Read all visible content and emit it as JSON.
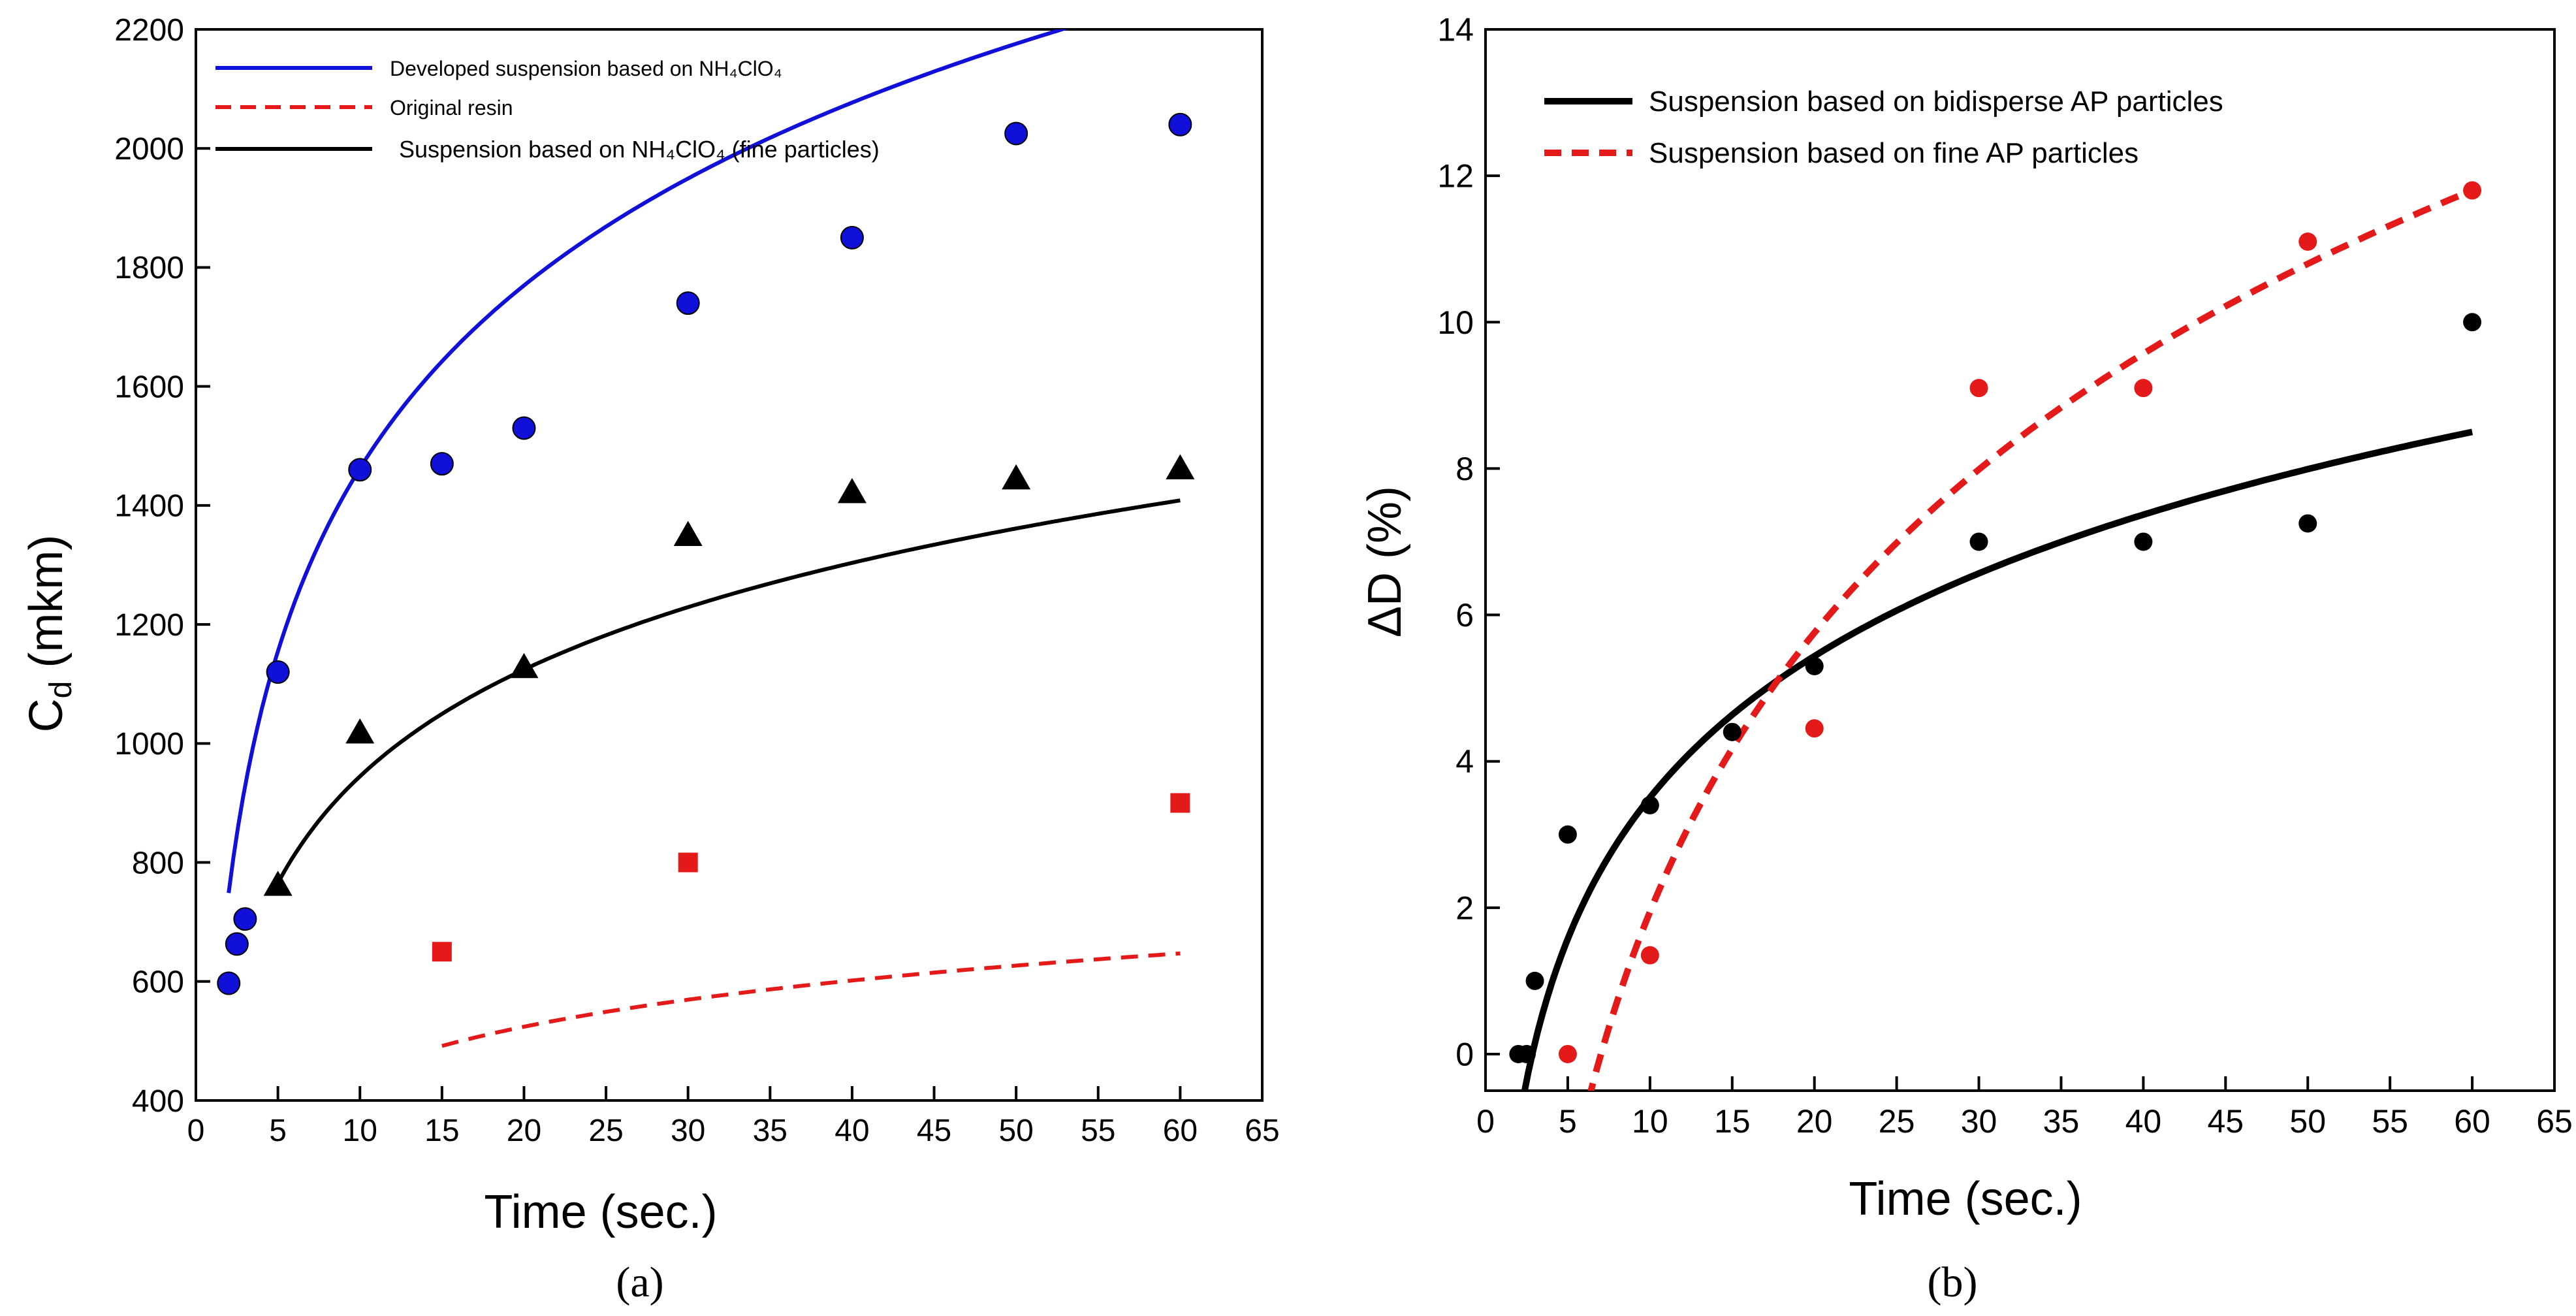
{
  "figure": {
    "panel_a_label": "(a)",
    "panel_b_label": "(b)"
  },
  "chart_data": [
    {
      "type": "scatter",
      "panel": "a",
      "xlabel": "Time (sec.)",
      "ylabel_main": "C",
      "ylabel_sub": "d",
      "ylabel_unit": " (mkm)",
      "xlim": [
        0,
        65
      ],
      "ylim": [
        400,
        2200
      ],
      "xticks": [
        0,
        5,
        10,
        15,
        20,
        25,
        30,
        35,
        40,
        45,
        50,
        55,
        60,
        65
      ],
      "yticks": [
        400,
        600,
        800,
        1000,
        1200,
        1400,
        1600,
        1800,
        2000,
        2200
      ],
      "grid": false,
      "legend_position": "top-left",
      "series": [
        {
          "name": "Developed suspension based on NH₄ClO₄",
          "color": "#1010d8",
          "marker": "circle",
          "line_style": "solid",
          "x": [
            2,
            2.5,
            3,
            5,
            10,
            15,
            20,
            30,
            40,
            50,
            60
          ],
          "y": [
            597,
            663,
            705,
            1120,
            1460,
            1470,
            1530,
            1740,
            1850,
            2025,
            2040
          ],
          "fit": {
            "a": 443.4,
            "b": 441.3,
            "x_range": [
              2,
              60
            ]
          }
        },
        {
          "name": "Original resin",
          "color": "#e41a1a",
          "marker": "square",
          "line_style": "dashed",
          "x": [
            15,
            30,
            60
          ],
          "y": [
            650,
            800,
            900
          ],
          "fit": {
            "a": 112.1,
            "b": 188.1,
            "x_range": [
              15,
              60
            ]
          }
        },
        {
          "name": "Suspension based on NH₄ClO₄ (fine particles)",
          "color": "#000000",
          "marker": "triangle",
          "line_style": "solid",
          "x": [
            5,
            10,
            20,
            30,
            40,
            50,
            60
          ],
          "y": [
            762,
            1018,
            1128,
            1350,
            1422,
            1445,
            1462
          ],
          "fit": {
            "a": 258.8,
            "b": 348.8,
            "x_range": [
              5,
              60
            ]
          }
        }
      ]
    },
    {
      "type": "scatter",
      "panel": "b",
      "xlabel": "Time (sec.)",
      "ylabel": "ΔD (%)",
      "xlim": [
        0,
        65
      ],
      "ylim": [
        -0.5,
        14
      ],
      "xticks": [
        0,
        5,
        10,
        15,
        20,
        25,
        30,
        35,
        40,
        45,
        50,
        55,
        60,
        65
      ],
      "yticks": [
        0,
        2,
        4,
        6,
        8,
        10,
        12,
        14
      ],
      "grid": false,
      "legend_position": "top-left",
      "series": [
        {
          "name": "Suspension based on bidisperse AP particles",
          "color": "#000000",
          "marker": "circle",
          "line_style": "solid",
          "x": [
            2,
            2.5,
            3,
            5,
            10,
            15,
            20,
            30,
            40,
            50,
            60
          ],
          "y": [
            0,
            0,
            1,
            3,
            3.4,
            4.4,
            5.3,
            7,
            7,
            7.25,
            10
          ],
          "fit": {
            "a": 2.7876,
            "b": -2.9134,
            "x_range": [
              2.3,
              60
            ]
          }
        },
        {
          "name": "Suspension based on fine AP particles",
          "color": "#e41a1a",
          "marker": "circle",
          "line_style": "dashed",
          "x": [
            5,
            10,
            20,
            30,
            40,
            50,
            60
          ],
          "y": [
            0,
            1.35,
            4.45,
            9.1,
            9.1,
            11.1,
            11.8
          ],
          "fit": {
            "a": 5.5004,
            "b": -10.7208,
            "x_range": [
              6.25,
              60
            ]
          }
        }
      ]
    }
  ]
}
